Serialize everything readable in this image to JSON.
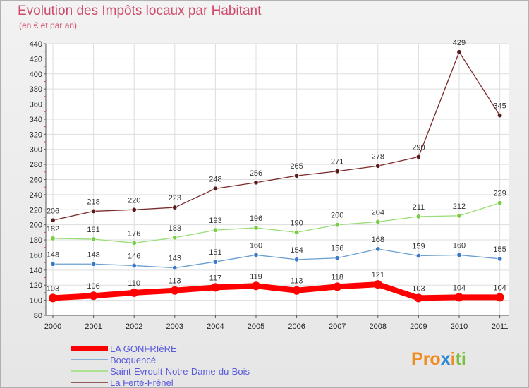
{
  "chart_data": {
    "type": "line",
    "title": "Evolution des Impôts locaux par Habitant",
    "subtitle": "(en € et par an)",
    "xlabel": "",
    "ylabel": "",
    "ylim": [
      80,
      440
    ],
    "ytick_step": 20,
    "x": [
      "2000",
      "2001",
      "2002",
      "2003",
      "2004",
      "2005",
      "2006",
      "2007",
      "2008",
      "2009",
      "2010",
      "2011"
    ],
    "grid": true,
    "series": [
      {
        "name": "LA GONFRIèRE",
        "color": "#ff0000",
        "thick": true,
        "values": [
          103,
          106,
          110,
          113,
          117,
          119,
          113,
          118,
          121,
          103,
          104,
          104
        ]
      },
      {
        "name": "Bocquencé",
        "color": "#6a9fd0",
        "marker": "#3a7ac8",
        "thick": false,
        "values": [
          148,
          148,
          146,
          143,
          151,
          160,
          154,
          156,
          168,
          159,
          160,
          155
        ]
      },
      {
        "name": "Saint-Evroult-Notre-Dame-du-Bois",
        "color": "#99dd77",
        "marker": "#77cc44",
        "thick": false,
        "values": [
          182,
          181,
          176,
          183,
          193,
          196,
          190,
          200,
          204,
          211,
          212,
          229
        ]
      },
      {
        "name": "La Ferté-Frênel",
        "color": "#7a2a2a",
        "marker": "#5a1a1a",
        "thick": false,
        "values": [
          206,
          218,
          220,
          223,
          248,
          256,
          265,
          271,
          278,
          290,
          429,
          345
        ]
      }
    ]
  },
  "logo": {
    "text": "Proxiti",
    "colors": [
      "#f08c1e",
      "#2a8ad8",
      "#7ac040"
    ]
  }
}
